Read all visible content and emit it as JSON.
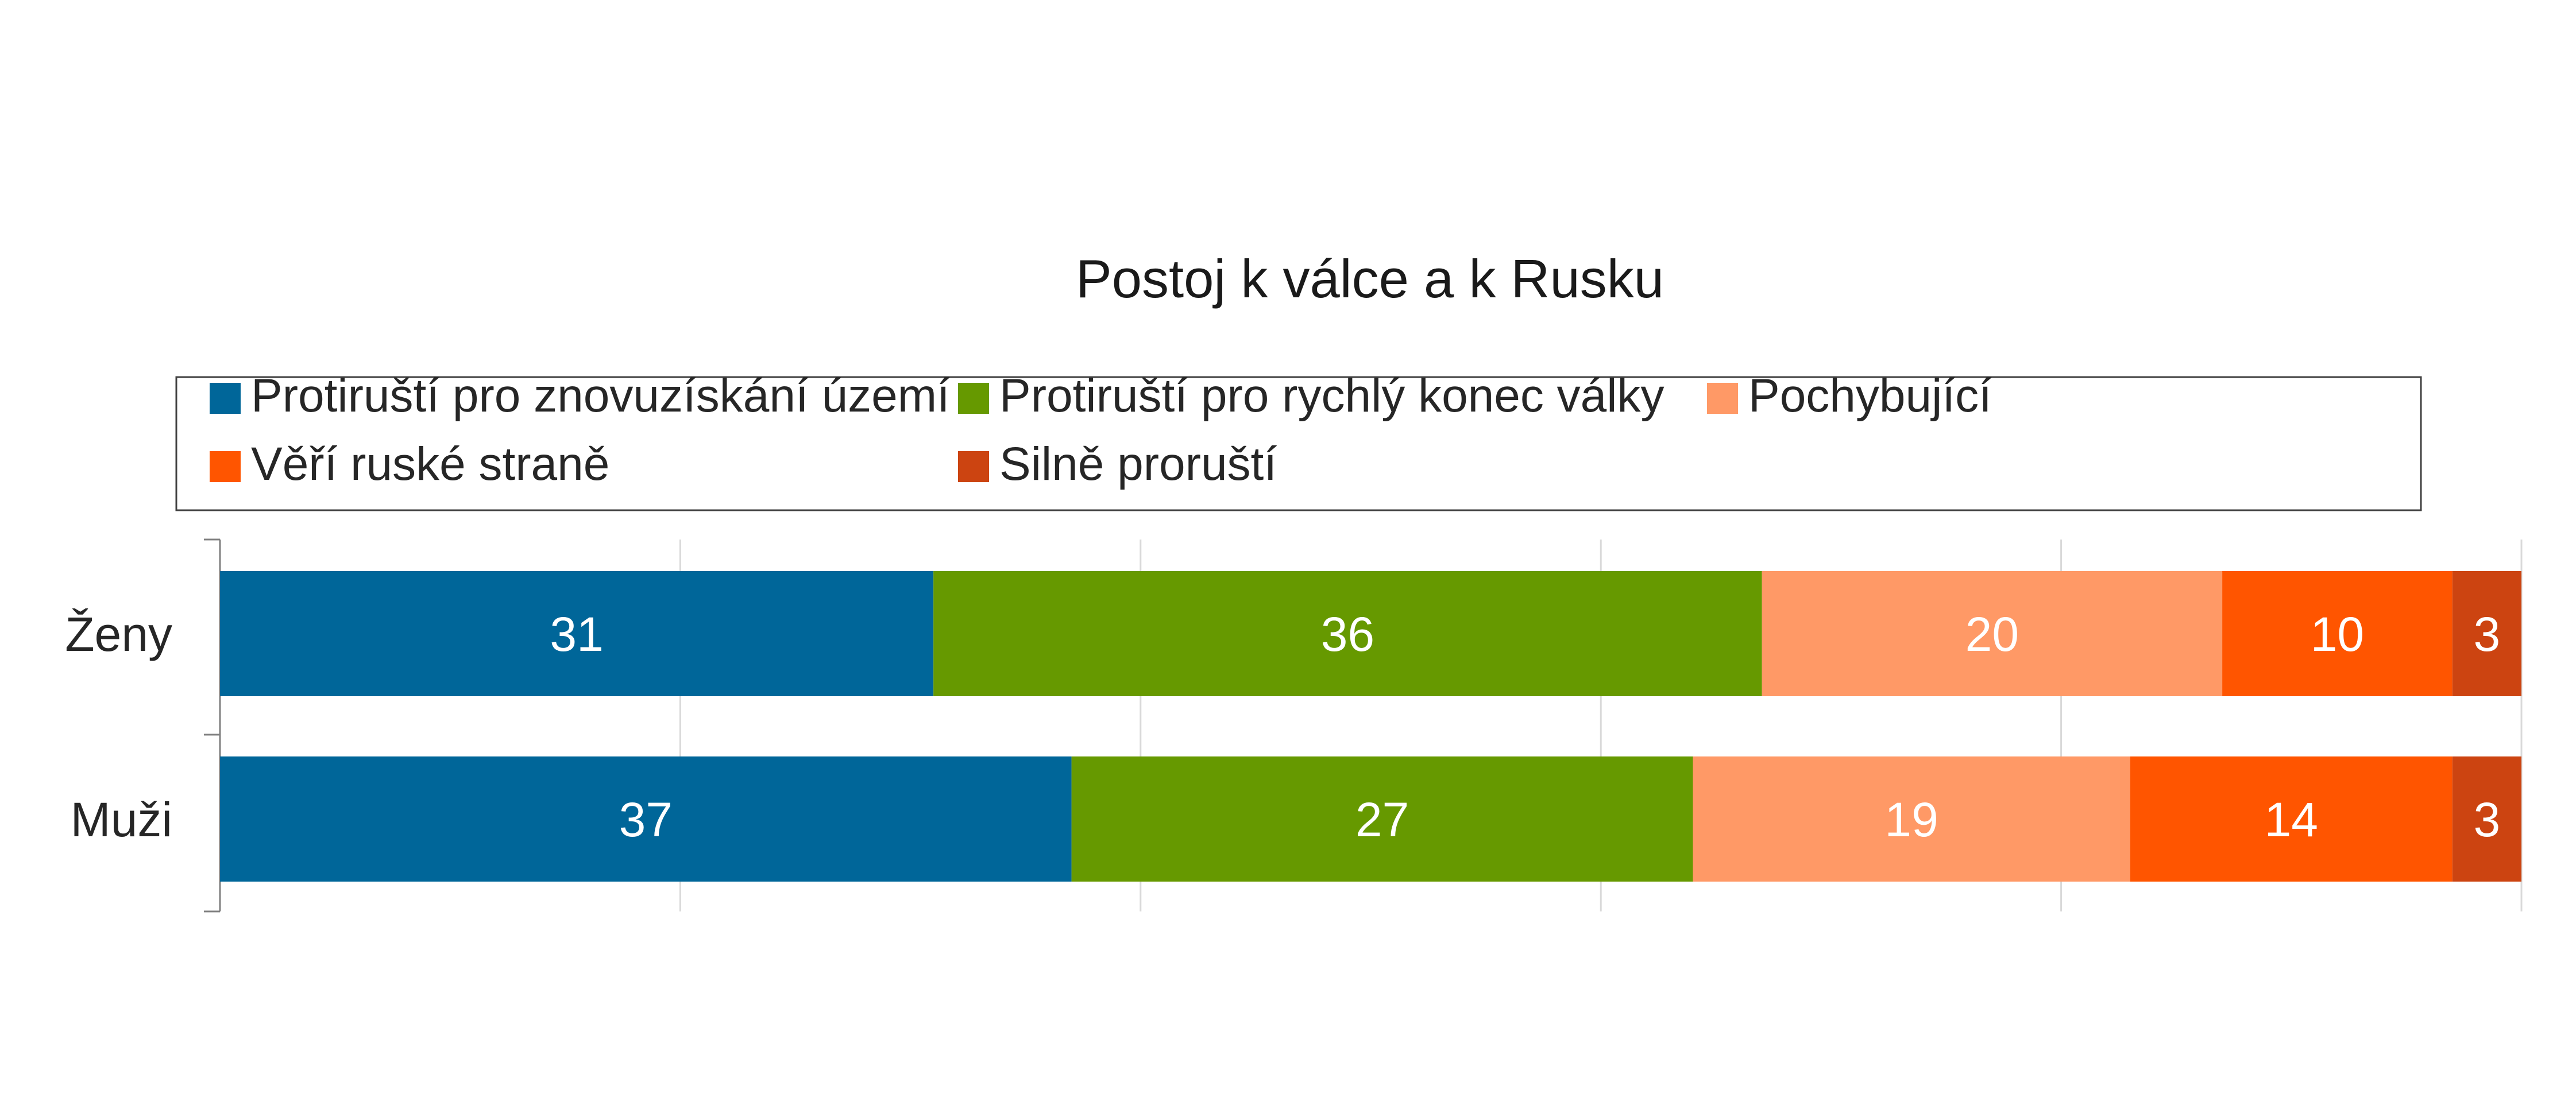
{
  "chart_data": {
    "type": "bar",
    "orientation": "horizontal",
    "stacked": true,
    "title": "Postoj k válce a k Rusku",
    "categories": [
      "Ženy",
      "Muži"
    ],
    "series": [
      {
        "name": "Protiruští pro znovuzískání území",
        "color": "#006699",
        "values": [
          31,
          37
        ]
      },
      {
        "name": "Protiruští pro rychlý konec války",
        "color": "#669900",
        "values": [
          36,
          27
        ]
      },
      {
        "name": "Pochybující",
        "color": "#FF9966",
        "values": [
          20,
          19
        ]
      },
      {
        "name": "Věří ruské straně",
        "color": "#FF5500",
        "values": [
          10,
          14
        ]
      },
      {
        "name": "Silně proruští",
        "color": "#CC4411",
        "values": [
          3,
          3
        ]
      }
    ],
    "xlim": [
      0,
      100
    ],
    "grid": true,
    "legend_position": "top",
    "data_labels": true
  }
}
